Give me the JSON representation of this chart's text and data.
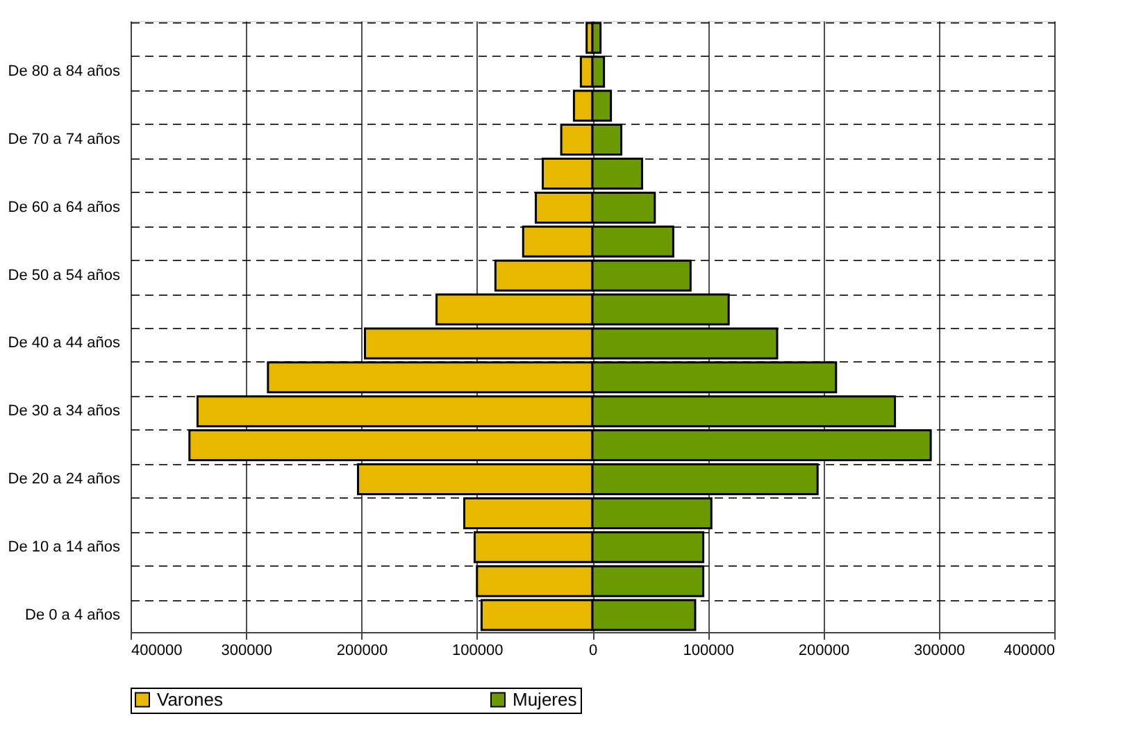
{
  "chart_data": {
    "type": "bar",
    "orientation": "horizontal",
    "stacked": true,
    "categories": [
      null,
      "De 80 a 84 años",
      null,
      "De 70 a 74 años",
      null,
      "De 60 a 64 años",
      null,
      "De 50 a 54 años",
      null,
      "De 40 a 44 años",
      null,
      "De 30 a 34 años",
      null,
      "De 20 a 24 años",
      null,
      "De 10 a 14 años",
      null,
      "De 0 a 4 años"
    ],
    "series": [
      {
        "name": "Varones",
        "color": "#e8b800",
        "values": [
          -5000,
          -10000,
          -16000,
          -27000,
          -43000,
          -49000,
          -60000,
          -84000,
          -135000,
          -197000,
          -281000,
          -342000,
          -349000,
          -203000,
          -111000,
          -102000,
          -100000,
          -96000
        ]
      },
      {
        "name": "Mujeres",
        "color": "#6b9a00",
        "values": [
          7000,
          10000,
          16000,
          25000,
          43000,
          54000,
          70000,
          85000,
          118000,
          160000,
          211000,
          262000,
          293000,
          195000,
          103000,
          96000,
          96000,
          89000
        ]
      }
    ],
    "xlim": [
      -400000,
      400000
    ],
    "xticks": [
      {
        "value": -400000,
        "label": "400000"
      },
      {
        "value": -300000,
        "label": "300000"
      },
      {
        "value": -200000,
        "label": "200000"
      },
      {
        "value": -100000,
        "label": "100000"
      },
      0,
      100000,
      200000,
      300000,
      400000
    ],
    "grid": true,
    "legend": "bottom"
  }
}
